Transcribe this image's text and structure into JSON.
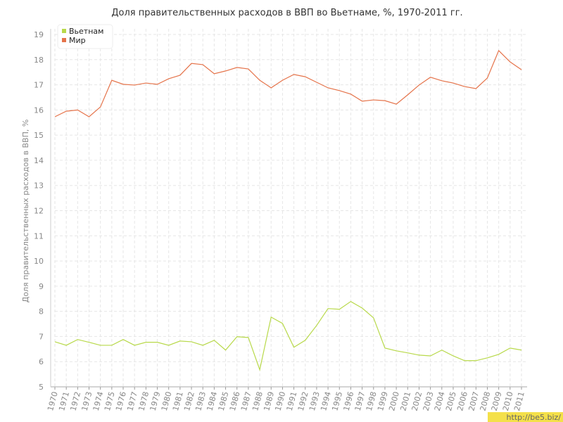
{
  "chart_data": {
    "type": "line",
    "title": "Доля правительственных расходов в ВВП во Вьетнаме, %, 1970-2011 гг.",
    "y_label": "Доля правительственных расходов в ВВП, %",
    "x": [
      1970,
      1971,
      1972,
      1973,
      1974,
      1975,
      1976,
      1977,
      1978,
      1979,
      1980,
      1981,
      1982,
      1983,
      1984,
      1985,
      1986,
      1987,
      1988,
      1989,
      1990,
      1991,
      1992,
      1993,
      1994,
      1995,
      1996,
      1997,
      1998,
      1999,
      2000,
      2001,
      2002,
      2003,
      2004,
      2005,
      2006,
      2007,
      2008,
      2009,
      2010,
      2011
    ],
    "xlim": [
      1970,
      2011
    ],
    "xticks": [
      1970,
      1971,
      1972,
      1973,
      1974,
      1975,
      1976,
      1977,
      1978,
      1979,
      1980,
      1981,
      1982,
      1983,
      1984,
      1985,
      1986,
      1987,
      1988,
      1989,
      1990,
      1991,
      1992,
      1993,
      1994,
      1995,
      1996,
      1997,
      1998,
      1999,
      2000,
      2001,
      2002,
      2003,
      2004,
      2005,
      2006,
      2007,
      2008,
      2009,
      2010,
      2011
    ],
    "ylim": [
      5,
      19
    ],
    "yticks": [
      5,
      6,
      7,
      8,
      9,
      10,
      11,
      12,
      13,
      14,
      15,
      16,
      17,
      18,
      19
    ],
    "grid": true,
    "legend": "upper left",
    "series": [
      {
        "name": "Вьетнам",
        "color": "#b8d94a",
        "values": [
          6.79,
          6.65,
          6.88,
          6.77,
          6.65,
          6.65,
          6.88,
          6.65,
          6.77,
          6.77,
          6.65,
          6.82,
          6.79,
          6.65,
          6.85,
          6.46,
          6.99,
          6.96,
          5.68,
          7.77,
          7.52,
          6.57,
          6.85,
          7.44,
          8.11,
          8.08,
          8.39,
          8.13,
          7.74,
          6.54,
          6.43,
          6.35,
          6.26,
          6.23,
          6.46,
          6.23,
          6.04,
          6.04,
          6.15,
          6.29,
          6.54,
          6.46
        ]
      },
      {
        "name": "Мир",
        "color": "#e5734a",
        "values": [
          15.73,
          15.95,
          16.0,
          15.73,
          16.12,
          17.18,
          17.02,
          16.99,
          17.07,
          17.02,
          17.24,
          17.38,
          17.85,
          17.8,
          17.44,
          17.55,
          17.69,
          17.63,
          17.18,
          16.88,
          17.18,
          17.41,
          17.32,
          17.1,
          16.88,
          16.77,
          16.63,
          16.35,
          16.4,
          16.37,
          16.23,
          16.6,
          16.99,
          17.3,
          17.16,
          17.07,
          16.93,
          16.85,
          17.27,
          18.36,
          17.91,
          17.6
        ]
      }
    ]
  },
  "watermark": "http://be5.biz/"
}
